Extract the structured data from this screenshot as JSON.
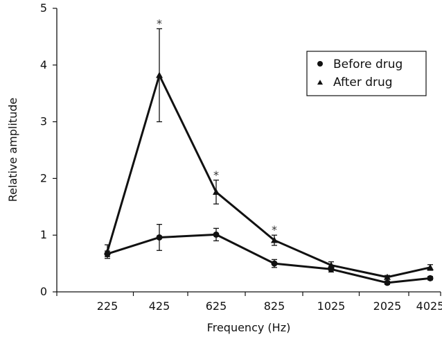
{
  "chart_data": {
    "type": "line",
    "title": "",
    "xlabel": "Frequency (Hz)",
    "ylabel": "Relative amplitude",
    "ylim": [
      0,
      5
    ],
    "yticks": [
      "0",
      "1",
      "2",
      "3",
      "4",
      "5"
    ],
    "categories": [
      "225",
      "425",
      "625",
      "825",
      "1025",
      "2025",
      "4025"
    ],
    "legend_position": "top-right",
    "grid": false,
    "series": [
      {
        "name": "Before drug",
        "marker": "circle",
        "values": [
          0.67,
          0.96,
          1.01,
          0.5,
          0.4,
          0.16,
          0.24
        ],
        "errors": [
          0.05,
          0.23,
          0.11,
          0.07,
          0.05,
          0.03,
          0.03
        ]
      },
      {
        "name": "After drug",
        "marker": "triangle",
        "values": [
          0.71,
          3.82,
          1.76,
          0.91,
          0.47,
          0.26,
          0.43
        ],
        "errors": [
          0.12,
          0.82,
          0.21,
          0.09,
          0.06,
          0.03,
          0.05
        ]
      }
    ],
    "annotations": [
      {
        "category": "425",
        "text": "*"
      },
      {
        "category": "625",
        "text": "*"
      },
      {
        "category": "825",
        "text": "*"
      }
    ]
  }
}
